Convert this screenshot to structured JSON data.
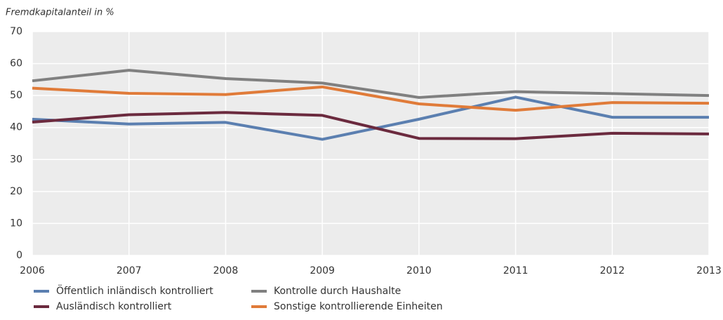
{
  "chart_data": {
    "type": "line",
    "y_axis_label": "Fremdkapitalanteil in %",
    "x": [
      2006,
      2007,
      2008,
      2009,
      2010,
      2011,
      2012,
      2013
    ],
    "xlim": [
      2006,
      2013
    ],
    "xticks": [
      2006,
      2007,
      2008,
      2009,
      2010,
      2011,
      2012,
      2013
    ],
    "ylim": [
      0,
      70
    ],
    "yticks": [
      0,
      10,
      20,
      30,
      40,
      50,
      60,
      70
    ],
    "grid": true,
    "series": [
      {
        "name": "Öffentlich inländisch kontrolliert",
        "color": "#5b7fb0",
        "values": [
          42.6,
          41.1,
          41.6,
          36.3,
          42.6,
          49.5,
          43.2,
          43.2
        ]
      },
      {
        "name": "Ausländisch kontrolliert",
        "color": "#6b2a3e",
        "values": [
          41.7,
          44.0,
          44.7,
          43.8,
          36.6,
          36.5,
          38.2,
          38.0
        ]
      },
      {
        "name": "Kontrolle durch Haushalte",
        "color": "#808080",
        "values": [
          54.6,
          57.9,
          55.3,
          53.9,
          49.4,
          51.2,
          50.6,
          50.0
        ]
      },
      {
        "name": "Sonstige kontrollierende Einheiten",
        "color": "#e07b39",
        "values": [
          52.3,
          50.7,
          50.3,
          52.7,
          47.4,
          45.4,
          47.8,
          47.6
        ]
      }
    ]
  }
}
